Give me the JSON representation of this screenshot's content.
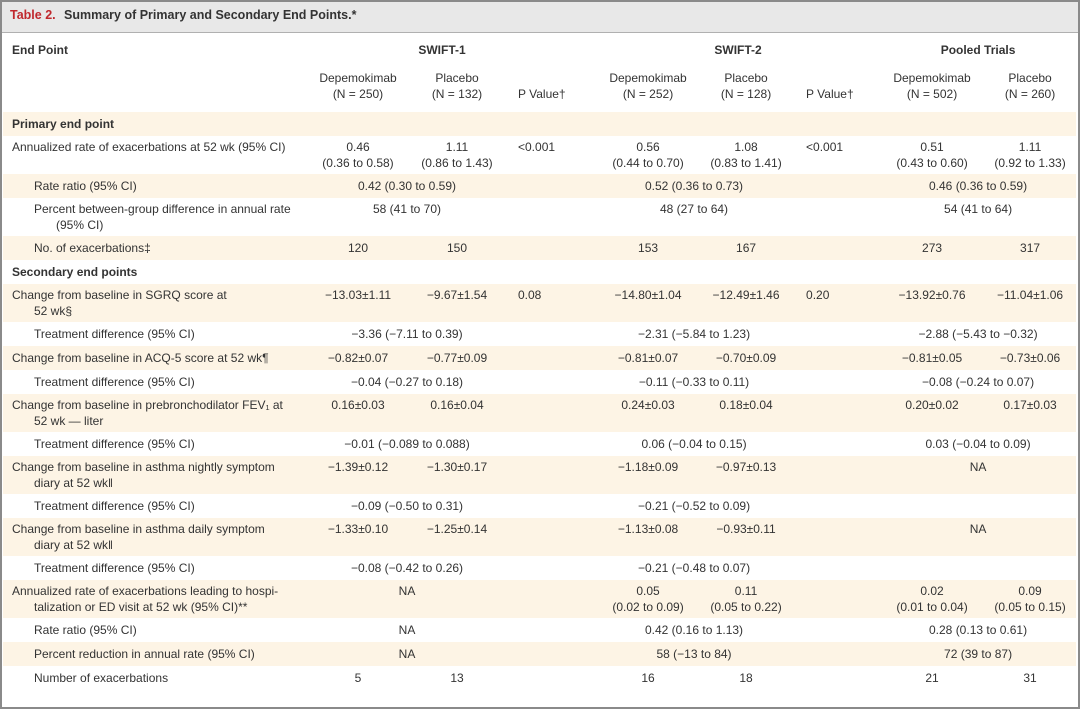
{
  "title": {
    "prefix": "Table 2.",
    "text": "Summary of Primary and Secondary End Points.*"
  },
  "header": {
    "endpoint": "End Point",
    "groups": [
      "SWIFT-1",
      "SWIFT-2",
      "Pooled Trials"
    ],
    "columns": [
      "Depemokimab\n(N = 250)",
      "Placebo\n(N = 132)",
      "P Value†",
      "Depemokimab\n(N = 252)",
      "Placebo\n(N = 128)",
      "P Value†",
      "Depemokimab\n(N = 502)",
      "Placebo\n(N = 260)"
    ]
  },
  "rows": [
    {
      "kind": "section",
      "h": "h24",
      "label": "Primary end point",
      "cells": []
    },
    {
      "kind": "row",
      "h": "h40",
      "label": "Annualized rate of exacerbations at 52 wk (95% CI)",
      "cells": [
        {
          "t": "0.46\n(0.36 to 0.58)"
        },
        {
          "t": "1.11\n(0.86 to 1.43)"
        },
        {
          "t": "<0.001",
          "p": 1
        },
        {
          "t": "0.56\n(0.44 to 0.70)"
        },
        {
          "t": "1.08\n(0.83 to 1.41)"
        },
        {
          "t": "<0.001",
          "p": 2
        },
        {
          "t": "0.51\n(0.43 to 0.60)"
        },
        {
          "t": "1.11\n(0.92 to 1.33)"
        }
      ]
    },
    {
      "kind": "sub",
      "h": "h24",
      "label": "Rate ratio (95% CI)",
      "cells": [
        {
          "t": "0.42 (0.30 to 0.59)",
          "s": 2
        },
        {
          "t": "",
          "p": 1
        },
        {
          "t": "0.52 (0.36 to 0.73)",
          "s": 2
        },
        {
          "t": "",
          "p": 2
        },
        {
          "t": "0.46 (0.36 to 0.59)",
          "s": 2
        }
      ]
    },
    {
      "kind": "subhang",
      "h": "h40",
      "label": "Percent between-group difference in annual rate (95% CI)",
      "cells": [
        {
          "t": "58 (41 to 70)",
          "s": 2
        },
        {
          "t": "",
          "p": 1
        },
        {
          "t": "48 (27 to 64)",
          "s": 2
        },
        {
          "t": "",
          "p": 2
        },
        {
          "t": "54 (41 to 64)",
          "s": 2
        }
      ]
    },
    {
      "kind": "sub",
      "h": "h24",
      "label": "No. of exacerbations‡",
      "cells": [
        {
          "t": "120"
        },
        {
          "t": "150"
        },
        {
          "t": "",
          "p": 1
        },
        {
          "t": "153"
        },
        {
          "t": "167"
        },
        {
          "t": "",
          "p": 2
        },
        {
          "t": "273"
        },
        {
          "t": "317"
        }
      ]
    },
    {
      "kind": "section",
      "h": "h24",
      "label": "Secondary end points",
      "cells": []
    },
    {
      "kind": "hang",
      "h": "h40",
      "label": "Change from baseline in SGRQ score at\n52 wk§",
      "cells": [
        {
          "t": "−13.03±1.11"
        },
        {
          "t": "−9.67±1.54"
        },
        {
          "t": "0.08",
          "p": 1
        },
        {
          "t": "−14.80±1.04"
        },
        {
          "t": "−12.49±1.46"
        },
        {
          "t": "0.20",
          "p": 2
        },
        {
          "t": "−13.92±0.76"
        },
        {
          "t": "−11.04±1.06"
        }
      ]
    },
    {
      "kind": "sub",
      "h": "h24",
      "label": "Treatment difference (95% CI)",
      "cells": [
        {
          "t": "−3.36 (−7.11 to 0.39)",
          "s": 2
        },
        {
          "t": "",
          "p": 1
        },
        {
          "t": "−2.31 (−5.84 to 1.23)",
          "s": 2
        },
        {
          "t": "",
          "p": 2
        },
        {
          "t": "−2.88 (−5.43 to −0.32)",
          "s": 2
        }
      ]
    },
    {
      "kind": "row",
      "h": "h24",
      "label": "Change from baseline in ACQ-5 score at 52 wk¶",
      "cells": [
        {
          "t": "−0.82±0.07"
        },
        {
          "t": "−0.77±0.09"
        },
        {
          "t": "",
          "p": 1
        },
        {
          "t": "−0.81±0.07"
        },
        {
          "t": "−0.70±0.09"
        },
        {
          "t": "",
          "p": 2
        },
        {
          "t": "−0.81±0.05"
        },
        {
          "t": "−0.73±0.06"
        }
      ]
    },
    {
      "kind": "sub",
      "h": "h24",
      "label": "Treatment difference (95% CI)",
      "cells": [
        {
          "t": "−0.04 (−0.27 to 0.18)",
          "s": 2
        },
        {
          "t": "",
          "p": 1
        },
        {
          "t": "−0.11 (−0.33 to 0.11)",
          "s": 2
        },
        {
          "t": "",
          "p": 2
        },
        {
          "t": "−0.08 (−0.24 to 0.07)",
          "s": 2
        }
      ]
    },
    {
      "kind": "hang",
      "h": "h40",
      "label": "Change from baseline in prebronchodilator FEV₁ at\n52 wk — liter",
      "cells": [
        {
          "t": "0.16±0.03"
        },
        {
          "t": "0.16±0.04"
        },
        {
          "t": "",
          "p": 1
        },
        {
          "t": "0.24±0.03"
        },
        {
          "t": "0.18±0.04"
        },
        {
          "t": "",
          "p": 2
        },
        {
          "t": "0.20±0.02"
        },
        {
          "t": "0.17±0.03"
        }
      ]
    },
    {
      "kind": "sub",
      "h": "h24",
      "label": "Treatment difference (95% CI)",
      "cells": [
        {
          "t": "−0.01 (−0.089 to 0.088)",
          "s": 2
        },
        {
          "t": "",
          "p": 1
        },
        {
          "t": "0.06 (−0.04 to 0.15)",
          "s": 2
        },
        {
          "t": "",
          "p": 2
        },
        {
          "t": "0.03 (−0.04 to 0.09)",
          "s": 2
        }
      ]
    },
    {
      "kind": "hang",
      "h": "h40",
      "label": "Change from baseline in asthma nightly symptom\ndiary at 52 wk‖",
      "cells": [
        {
          "t": "−1.39±0.12"
        },
        {
          "t": "−1.30±0.17"
        },
        {
          "t": "",
          "p": 1
        },
        {
          "t": "−1.18±0.09"
        },
        {
          "t": "−0.97±0.13"
        },
        {
          "t": "",
          "p": 2
        },
        {
          "t": "NA",
          "s": 2
        }
      ]
    },
    {
      "kind": "sub",
      "h": "h24",
      "label": "Treatment difference (95% CI)",
      "cells": [
        {
          "t": "−0.09 (−0.50 to 0.31)",
          "s": 2
        },
        {
          "t": "",
          "p": 1
        },
        {
          "t": "−0.21 (−0.52 to 0.09)",
          "s": 2
        },
        {
          "t": "",
          "p": 2
        },
        {
          "t": "",
          "s": 2
        }
      ]
    },
    {
      "kind": "hang",
      "h": "h40",
      "label": "Change from baseline in asthma daily symptom\ndiary at 52 wk‖",
      "cells": [
        {
          "t": "−1.33±0.10"
        },
        {
          "t": "−1.25±0.14"
        },
        {
          "t": "",
          "p": 1
        },
        {
          "t": "−1.13±0.08"
        },
        {
          "t": "−0.93±0.11"
        },
        {
          "t": "",
          "p": 2
        },
        {
          "t": "NA",
          "s": 2
        }
      ]
    },
    {
      "kind": "sub",
      "h": "h24",
      "label": "Treatment difference (95% CI)",
      "cells": [
        {
          "t": "−0.08 (−0.42 to 0.26)",
          "s": 2
        },
        {
          "t": "",
          "p": 1
        },
        {
          "t": "−0.21 (−0.48 to 0.07)",
          "s": 2
        },
        {
          "t": "",
          "p": 2
        },
        {
          "t": "",
          "s": 2
        }
      ]
    },
    {
      "kind": "hang",
      "h": "h40",
      "label": "Annualized rate of exacerbations leading to hospi-\ntalization or ED visit at 52 wk (95% CI)**",
      "cells": [
        {
          "t": "NA",
          "s": 2
        },
        {
          "t": "",
          "p": 1
        },
        {
          "t": "0.05\n(0.02 to 0.09)"
        },
        {
          "t": "0.11\n(0.05 to 0.22)"
        },
        {
          "t": "",
          "p": 2
        },
        {
          "t": "0.02\n(0.01 to 0.04)"
        },
        {
          "t": "0.09\n(0.05 to 0.15)"
        }
      ]
    },
    {
      "kind": "sub",
      "h": "h24",
      "label": "Rate ratio (95% CI)",
      "cells": [
        {
          "t": "NA",
          "s": 2
        },
        {
          "t": "",
          "p": 1
        },
        {
          "t": "0.42 (0.16 to 1.13)",
          "s": 2
        },
        {
          "t": "",
          "p": 2
        },
        {
          "t": "0.28 (0.13 to 0.61)",
          "s": 2
        }
      ]
    },
    {
      "kind": "sub",
      "h": "h24",
      "label": "Percent reduction in annual rate (95% CI)",
      "cells": [
        {
          "t": "NA",
          "s": 2
        },
        {
          "t": "",
          "p": 1
        },
        {
          "t": "58 (−13 to 84)",
          "s": 2
        },
        {
          "t": "",
          "p": 2
        },
        {
          "t": "72 (39 to 87)",
          "s": 2
        }
      ]
    },
    {
      "kind": "sub",
      "h": "h24",
      "label": "Number of exacerbations",
      "cells": [
        {
          "t": "5"
        },
        {
          "t": "13"
        },
        {
          "t": "",
          "p": 1
        },
        {
          "t": "16"
        },
        {
          "t": "18"
        },
        {
          "t": "",
          "p": 2
        },
        {
          "t": "21"
        },
        {
          "t": "31"
        }
      ]
    }
  ]
}
